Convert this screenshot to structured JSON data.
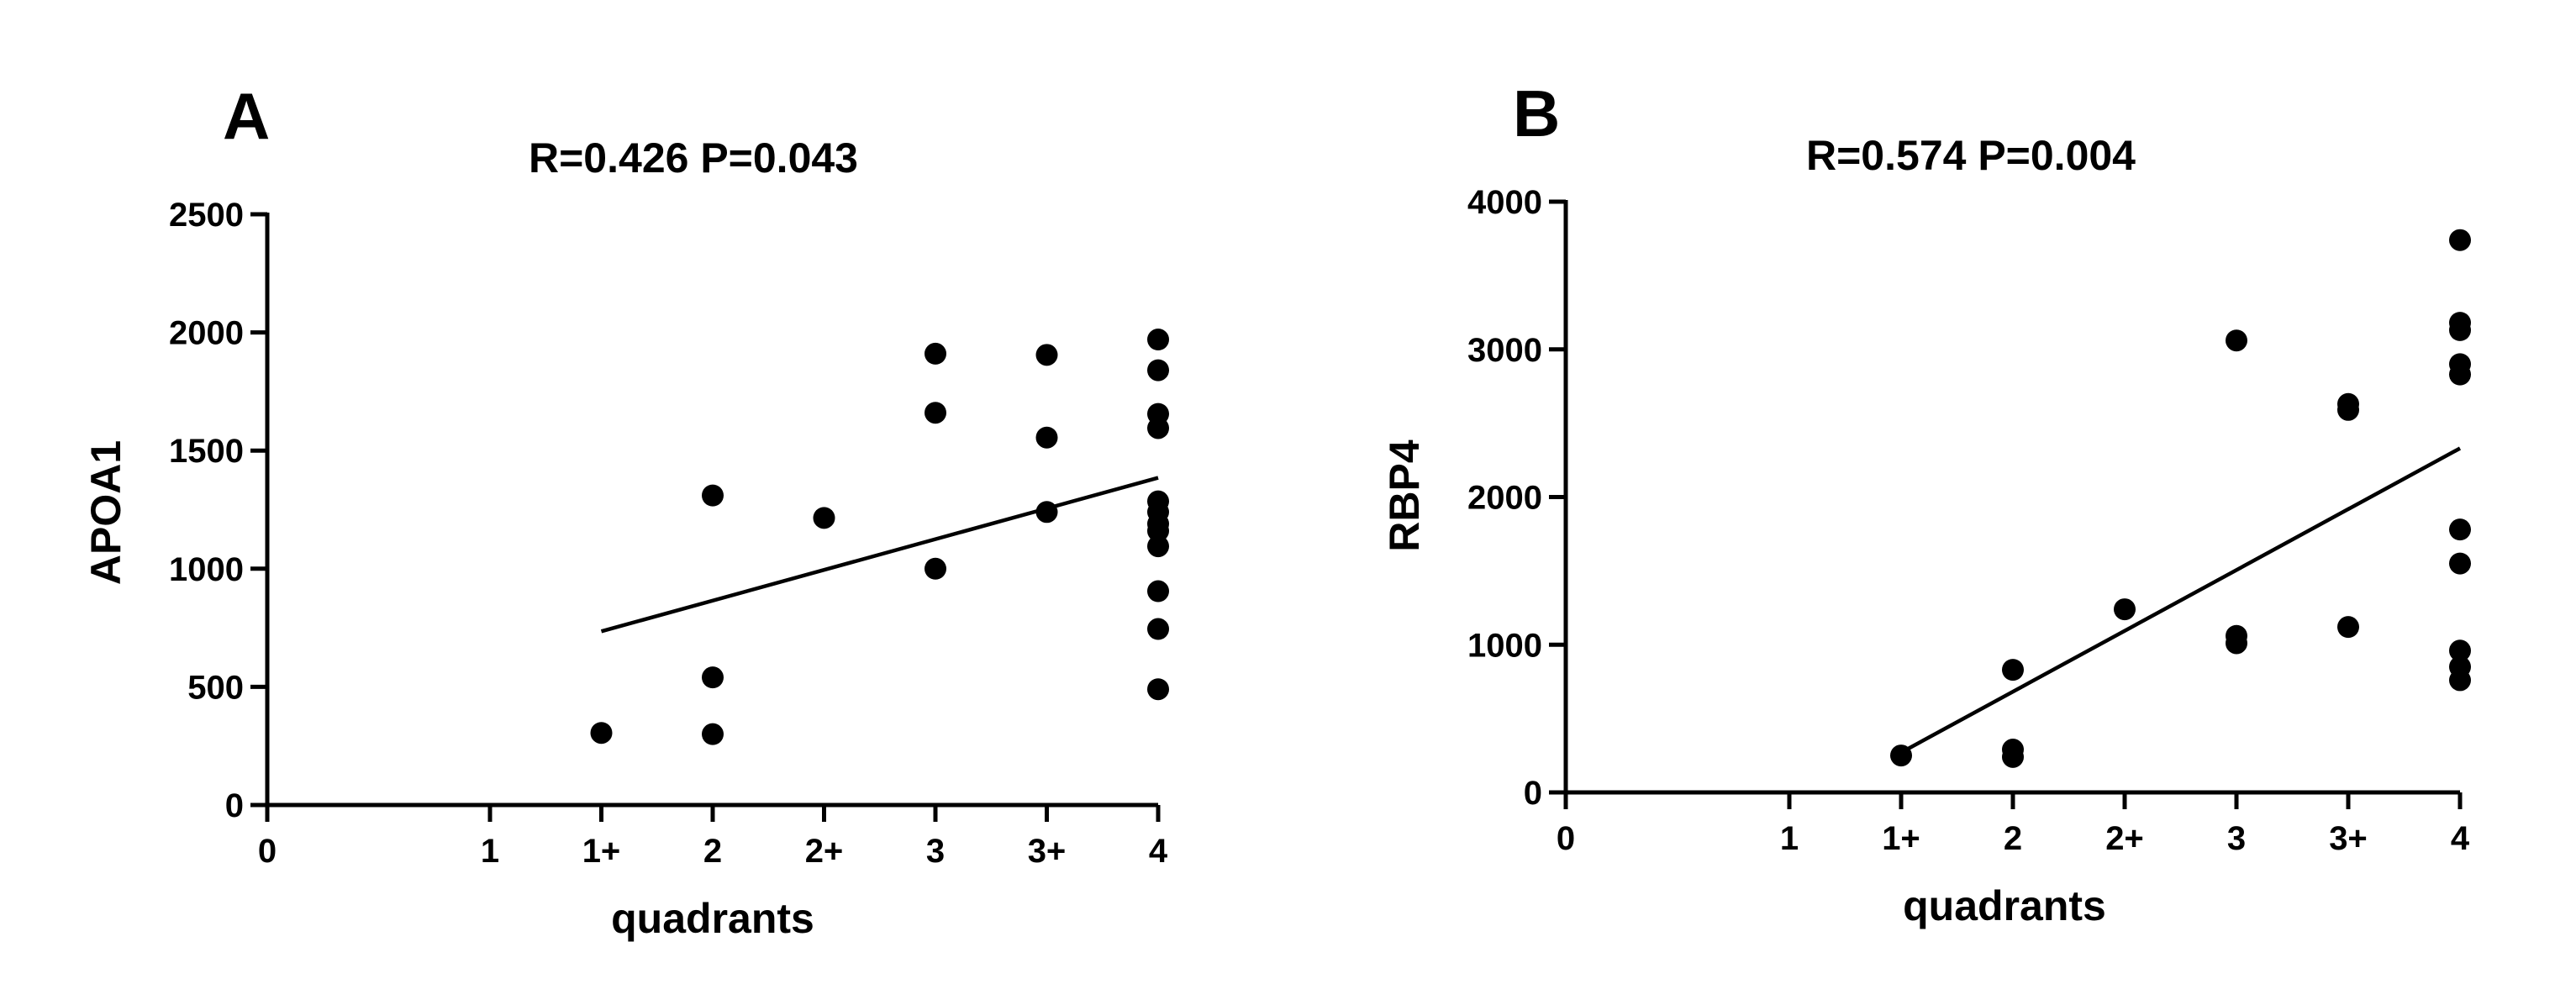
{
  "colors": {
    "ink": "#000000",
    "background": "#ffffff"
  },
  "chart_data": [
    {
      "type": "scatter",
      "panel_label": "A",
      "title": "R=0.426 P=0.043",
      "xlabel": "quadrants",
      "ylabel": "APOA1",
      "x_ticks": [
        {
          "label": "0",
          "value": 0
        },
        {
          "label": "1",
          "value": 1
        },
        {
          "label": "1+",
          "value": 1.5
        },
        {
          "label": "2",
          "value": 2
        },
        {
          "label": "2+",
          "value": 2.5
        },
        {
          "label": "3",
          "value": 3
        },
        {
          "label": "3+",
          "value": 3.5
        },
        {
          "label": "4",
          "value": 4
        }
      ],
      "y_ticks": [
        "0",
        "500",
        "1000",
        "1500",
        "2000",
        "2500"
      ],
      "xlim": [
        0,
        4
      ],
      "ylim": [
        0,
        2500
      ],
      "points": [
        {
          "x": 1.5,
          "y": 305
        },
        {
          "x": 2,
          "y": 1310
        },
        {
          "x": 2,
          "y": 540
        },
        {
          "x": 2,
          "y": 300
        },
        {
          "x": 2.5,
          "y": 1215
        },
        {
          "x": 3,
          "y": 1910
        },
        {
          "x": 3,
          "y": 1660
        },
        {
          "x": 3,
          "y": 1000
        },
        {
          "x": 3.5,
          "y": 1905
        },
        {
          "x": 3.5,
          "y": 1555
        },
        {
          "x": 3.5,
          "y": 1240
        },
        {
          "x": 4,
          "y": 1970
        },
        {
          "x": 4,
          "y": 1840
        },
        {
          "x": 4,
          "y": 1655
        },
        {
          "x": 4,
          "y": 1595
        },
        {
          "x": 4,
          "y": 1285
        },
        {
          "x": 4,
          "y": 1240
        },
        {
          "x": 4,
          "y": 1190
        },
        {
          "x": 4,
          "y": 1160
        },
        {
          "x": 4,
          "y": 1095
        },
        {
          "x": 4,
          "y": 905
        },
        {
          "x": 4,
          "y": 745
        },
        {
          "x": 4,
          "y": 490
        }
      ],
      "fit_line": {
        "x": [
          1.5,
          4
        ],
        "y": [
          735,
          1385
        ]
      },
      "grid": false,
      "legend": "none"
    },
    {
      "type": "scatter",
      "panel_label": "B",
      "title": "R=0.574 P=0.004",
      "xlabel": "quadrants",
      "ylabel": "RBP4",
      "x_ticks": [
        {
          "label": "0",
          "value": 0
        },
        {
          "label": "1",
          "value": 1
        },
        {
          "label": "1+",
          "value": 1.5
        },
        {
          "label": "2",
          "value": 2
        },
        {
          "label": "2+",
          "value": 2.5
        },
        {
          "label": "3",
          "value": 3
        },
        {
          "label": "3+",
          "value": 3.5
        },
        {
          "label": "4",
          "value": 4
        }
      ],
      "y_ticks": [
        "0",
        "1000",
        "2000",
        "3000",
        "4000"
      ],
      "xlim": [
        0,
        4
      ],
      "ylim": [
        0,
        4000
      ],
      "points": [
        {
          "x": 1.5,
          "y": 250
        },
        {
          "x": 2,
          "y": 830
        },
        {
          "x": 2,
          "y": 290
        },
        {
          "x": 2,
          "y": 240
        },
        {
          "x": 2.5,
          "y": 1240
        },
        {
          "x": 3,
          "y": 3060
        },
        {
          "x": 3,
          "y": 1060
        },
        {
          "x": 3,
          "y": 1010
        },
        {
          "x": 3.5,
          "y": 2630
        },
        {
          "x": 3.5,
          "y": 2590
        },
        {
          "x": 3.5,
          "y": 1120
        },
        {
          "x": 4,
          "y": 3740
        },
        {
          "x": 4,
          "y": 3180
        },
        {
          "x": 4,
          "y": 3130
        },
        {
          "x": 4,
          "y": 2900
        },
        {
          "x": 4,
          "y": 2830
        },
        {
          "x": 4,
          "y": 1780
        },
        {
          "x": 4,
          "y": 1550
        },
        {
          "x": 4,
          "y": 960
        },
        {
          "x": 4,
          "y": 850
        },
        {
          "x": 4,
          "y": 760
        }
      ],
      "fit_line": {
        "x": [
          1.5,
          4
        ],
        "y": [
          270,
          2330
        ]
      },
      "grid": false,
      "legend": "none"
    }
  ]
}
